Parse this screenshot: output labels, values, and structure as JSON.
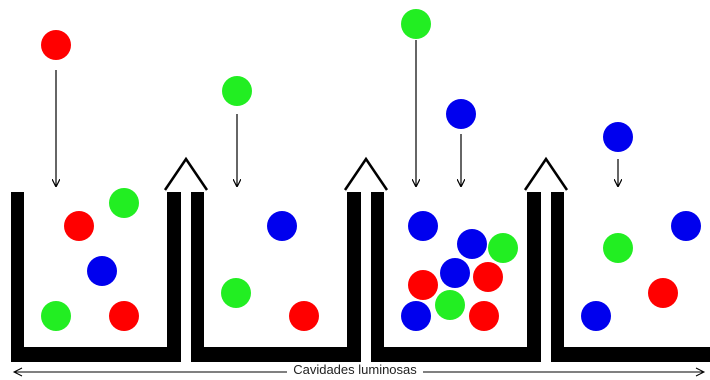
{
  "caption": "Cavidades luminosas",
  "colors": {
    "red": "#ff0000",
    "green": "#22ee22",
    "blue": "#0000ee",
    "wall": "#000000",
    "arrow": "#000000"
  },
  "cavities": [
    {
      "name": "cavity-1",
      "incoming": [
        "red"
      ],
      "inside": [
        "green",
        "red",
        "blue",
        "green",
        "red"
      ]
    },
    {
      "name": "cavity-2",
      "incoming": [
        "green"
      ],
      "inside": [
        "blue",
        "green",
        "red"
      ]
    },
    {
      "name": "cavity-3",
      "incoming": [
        "green",
        "blue"
      ],
      "inside": [
        "blue",
        "blue",
        "green",
        "blue",
        "red",
        "red",
        "green",
        "blue",
        "red"
      ]
    },
    {
      "name": "cavity-4",
      "incoming": [
        "blue"
      ],
      "inside": [
        "blue",
        "green",
        "red",
        "blue"
      ]
    }
  ]
}
